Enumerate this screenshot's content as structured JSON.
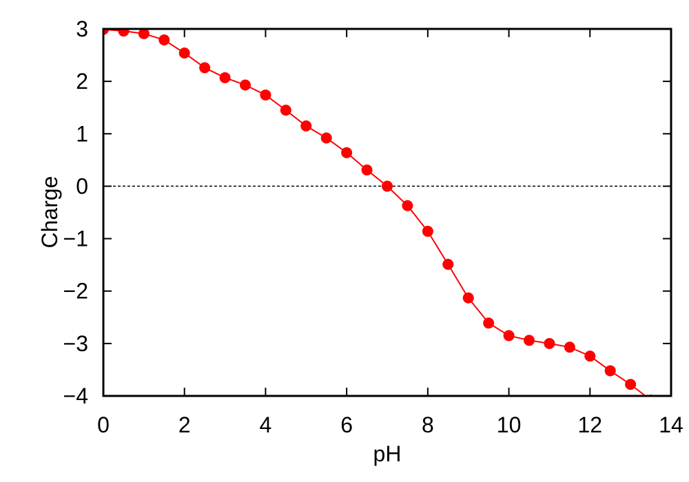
{
  "chart_data": {
    "type": "line",
    "title": "",
    "xlabel": "pH",
    "ylabel": "Charge",
    "xlim": [
      0,
      14
    ],
    "ylim": [
      -4,
      3
    ],
    "xticks": [
      0,
      2,
      4,
      6,
      8,
      10,
      12,
      14
    ],
    "yticks": [
      -4,
      -3,
      -2,
      -1,
      0,
      1,
      2,
      3
    ],
    "xtick_labels": [
      "0",
      "2",
      "4",
      "6",
      "8",
      "10",
      "12",
      "14"
    ],
    "ytick_labels": [
      "−4",
      "−3",
      "−2",
      "−1",
      "0",
      "1",
      "2",
      "3"
    ],
    "grid": false,
    "reference_line": {
      "y": 0,
      "style": "dashed",
      "color": "#000000"
    },
    "series": [
      {
        "color": "#ff0000",
        "marker": "circle",
        "x": [
          0,
          0.5,
          1,
          1.5,
          2,
          2.5,
          3,
          3.5,
          4,
          4.5,
          5,
          5.5,
          6,
          6.5,
          7,
          7.5,
          8,
          8.5,
          9,
          9.5,
          10,
          10.5,
          11,
          11.5,
          12,
          12.5,
          13,
          13.5,
          14
        ],
        "y": [
          2.99,
          2.96,
          2.91,
          2.79,
          2.54,
          2.26,
          2.07,
          1.93,
          1.74,
          1.45,
          1.15,
          0.92,
          0.64,
          0.31,
          0.0,
          -0.37,
          -0.86,
          -1.49,
          -2.13,
          -2.61,
          -2.85,
          -2.94,
          -3.0,
          -3.07,
          -3.24,
          -3.52,
          -3.78,
          -4.08,
          -4.45
        ]
      }
    ]
  }
}
